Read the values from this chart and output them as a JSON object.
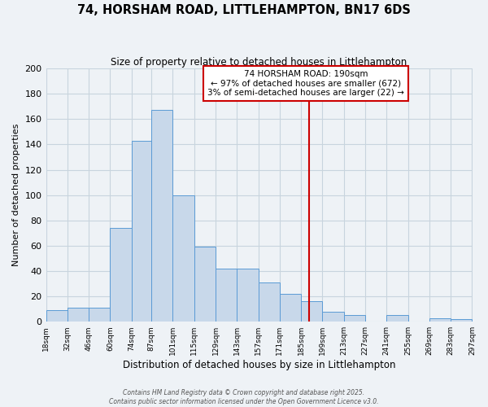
{
  "title": "74, HORSHAM ROAD, LITTLEHAMPTON, BN17 6DS",
  "subtitle": "Size of property relative to detached houses in Littlehampton",
  "xlabel": "Distribution of detached houses by size in Littlehampton",
  "ylabel": "Number of detached properties",
  "bin_edges": [
    18,
    32,
    46,
    60,
    74,
    87,
    101,
    115,
    129,
    143,
    157,
    171,
    185,
    199,
    213,
    227,
    241,
    255,
    269,
    283,
    297
  ],
  "bar_heights": [
    9,
    11,
    11,
    74,
    143,
    167,
    100,
    59,
    42,
    42,
    31,
    22,
    16,
    8,
    5,
    0,
    5,
    0,
    3,
    2
  ],
  "bar_color": "#c8d8ea",
  "bar_edge_color": "#5b9bd5",
  "property_size": 190,
  "vline_color": "#cc0000",
  "annotation_line1": "74 HORSHAM ROAD: 190sqm",
  "annotation_line2": "← 97% of detached houses are smaller (672)",
  "annotation_line3": "3% of semi-detached houses are larger (22) →",
  "ylim": [
    0,
    200
  ],
  "yticks": [
    0,
    20,
    40,
    60,
    80,
    100,
    120,
    140,
    160,
    180,
    200
  ],
  "tick_labels": [
    "18sqm",
    "32sqm",
    "46sqm",
    "60sqm",
    "74sqm",
    "87sqm",
    "101sqm",
    "115sqm",
    "129sqm",
    "143sqm",
    "157sqm",
    "171sqm",
    "185sqm",
    "199sqm",
    "213sqm",
    "227sqm",
    "241sqm",
    "255sqm",
    "269sqm",
    "283sqm",
    "297sqm"
  ],
  "grid_color": "#c8d4de",
  "background_color": "#eef2f6",
  "footer_line1": "Contains HM Land Registry data © Crown copyright and database right 2025.",
  "footer_line2": "Contains public sector information licensed under the Open Government Licence v3.0."
}
